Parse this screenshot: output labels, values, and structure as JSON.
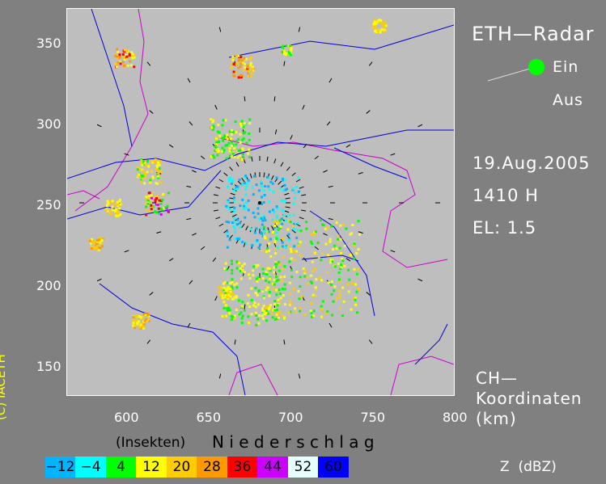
{
  "title": "ETH—Radar",
  "status": {
    "on_label": "Ein",
    "off_label": "Aus",
    "active": "Ein",
    "active_color": "#00ff00"
  },
  "date": "19.Aug.2005",
  "time": "1410 H",
  "elevation": "EL: 1.5",
  "coord_label": [
    "CH—",
    "Koordinaten",
    "(km)"
  ],
  "x_ticks": [
    "600",
    "650",
    "700",
    "750",
    "800"
  ],
  "y_ticks": [
    "350",
    "300",
    "250",
    "200",
    "150"
  ],
  "legend_header": {
    "insects": "(Insekten)",
    "precip": "N i e d e r s c h l a g"
  },
  "legend": [
    {
      "label": "−12",
      "color": "#00b4ff"
    },
    {
      "label": "−4",
      "color": "#00ffff"
    },
    {
      "label": "4",
      "color": "#00ff00"
    },
    {
      "label": "12",
      "color": "#ffff00"
    },
    {
      "label": "20",
      "color": "#ffcc00"
    },
    {
      "label": "28",
      "color": "#ff9900"
    },
    {
      "label": "36",
      "color": "#ff0000"
    },
    {
      "label": "44",
      "color": "#cc00ff"
    },
    {
      "label": "52",
      "color": "#e6ffff"
    },
    {
      "label": "60",
      "color": "#0000ff"
    }
  ],
  "unit": "Z  (dBZ)",
  "copyright": "(C) IACETH"
}
